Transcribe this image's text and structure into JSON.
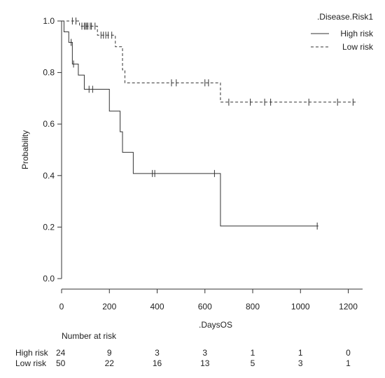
{
  "chart_data": {
    "type": "line",
    "subtype": "kaplan-meier",
    "xlabel": ".DaysOS",
    "ylabel": "Probability",
    "xlim": [
      0,
      1260
    ],
    "ylim": [
      0,
      1.0
    ],
    "x_ticks": [
      0,
      200,
      400,
      600,
      800,
      1000,
      1200
    ],
    "y_ticks": [
      0.0,
      0.2,
      0.4,
      0.6,
      0.8,
      1.0
    ],
    "y_tick_labels": [
      "0.0",
      "0.2",
      "0.4",
      "0.6",
      "0.8",
      "1.0"
    ],
    "grid": false,
    "legend": {
      "title": ".Disease.Risk1",
      "position": "top-right",
      "entries": [
        "High risk",
        "Low risk"
      ]
    },
    "series": [
      {
        "name": "High risk",
        "line_style": "solid",
        "color": "#333333",
        "steps": [
          [
            0,
            1.0
          ],
          [
            10,
            0.958
          ],
          [
            30,
            0.917
          ],
          [
            45,
            0.833
          ],
          [
            70,
            0.79
          ],
          [
            95,
            0.735
          ],
          [
            200,
            0.65
          ],
          [
            245,
            0.57
          ],
          [
            255,
            0.49
          ],
          [
            300,
            0.408
          ],
          [
            665,
            0.204
          ],
          [
            1075,
            0.204
          ]
        ],
        "censored": [
          40,
          50,
          115,
          130,
          380,
          390,
          640,
          1070
        ]
      },
      {
        "name": "Low risk",
        "line_style": "dashed",
        "color": "#333333",
        "steps": [
          [
            0,
            1.0
          ],
          [
            75,
            0.98
          ],
          [
            150,
            0.945
          ],
          [
            225,
            0.9
          ],
          [
            255,
            0.81
          ],
          [
            265,
            0.76
          ],
          [
            665,
            0.685
          ],
          [
            1240,
            0.685
          ]
        ],
        "censored": [
          45,
          60,
          85,
          95,
          100,
          105,
          110,
          120,
          125,
          140,
          165,
          175,
          185,
          195,
          210,
          460,
          480,
          600,
          615,
          700,
          790,
          850,
          875,
          1035,
          1155,
          1220
        ]
      }
    ],
    "risk_table": {
      "title": "Number at risk",
      "times": [
        0,
        200,
        400,
        600,
        800,
        1000,
        1200
      ],
      "rows": [
        {
          "label": "High risk",
          "counts": [
            "24",
            "9",
            "3",
            "3",
            "1",
            "1",
            "0"
          ]
        },
        {
          "label": "Low risk",
          "counts": [
            "50",
            "22",
            "16",
            "13",
            "5",
            "3",
            "1"
          ]
        }
      ]
    }
  }
}
